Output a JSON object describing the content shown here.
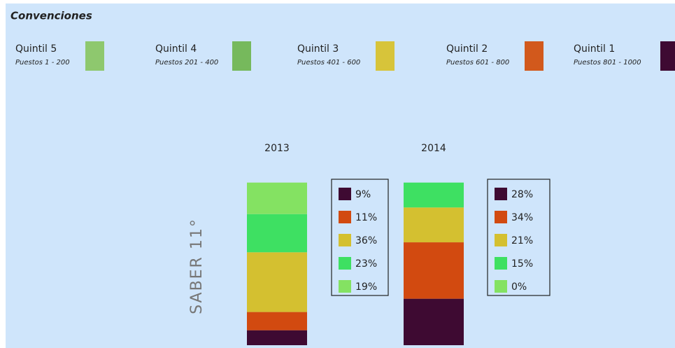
{
  "chart_data": {
    "type": "bar",
    "stacked": true,
    "title": "Convenciones",
    "legend": [
      {
        "name": "Quintil 5",
        "detail": "Puestos 1 - 200",
        "color": "#8ec86e"
      },
      {
        "name": "Quintil 4",
        "detail": "Puestos 201 - 400",
        "color": "#76b95c"
      },
      {
        "name": "Quintil 3",
        "detail": "Puestos 401 - 600",
        "color": "#d7c43a"
      },
      {
        "name": "Quintil 2",
        "detail": "Puestos 601 - 800",
        "color": "#d2591c"
      },
      {
        "name": "Quintil 1",
        "detail": "Puestos 801 - 1000",
        "color": "#3e0a32"
      }
    ],
    "ylabel": "SABER 11°",
    "categories": [
      "2013",
      "2014"
    ],
    "ylim": [
      0,
      100
    ],
    "series": [
      {
        "color": "#3e0a32",
        "values": [
          9,
          28
        ],
        "value_labels": [
          "9%",
          "28%"
        ]
      },
      {
        "color": "#d24a10",
        "values": [
          11,
          34
        ],
        "value_labels": [
          "11%",
          "34%"
        ]
      },
      {
        "color": "#d4c030",
        "values": [
          36,
          21
        ],
        "value_labels": [
          "36%",
          "21%"
        ]
      },
      {
        "color": "#3ee062",
        "values": [
          23,
          15
        ],
        "value_labels": [
          "23%",
          "15%"
        ]
      },
      {
        "color": "#84e262",
        "values": [
          19,
          0
        ],
        "value_labels": [
          "19%",
          "0%"
        ]
      }
    ]
  }
}
